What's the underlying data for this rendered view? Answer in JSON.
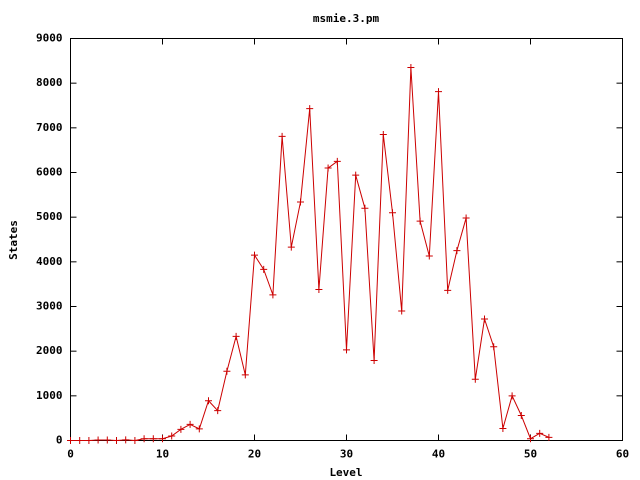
{
  "chart_data": {
    "type": "line",
    "title": "msmie.3.pm",
    "x_label": "Level",
    "y_label": "States",
    "x": [
      0,
      1,
      2,
      3,
      4,
      5,
      6,
      7,
      8,
      9,
      10,
      11,
      12,
      13,
      14,
      15,
      16,
      17,
      18,
      19,
      20,
      21,
      22,
      23,
      24,
      25,
      26,
      27,
      28,
      29,
      30,
      31,
      32,
      33,
      34,
      35,
      36,
      37,
      38,
      39,
      40,
      41,
      42,
      43,
      44,
      45,
      46,
      47,
      48,
      49,
      50,
      51,
      52
    ],
    "values": [
      0,
      0,
      0,
      10,
      10,
      0,
      15,
      0,
      40,
      40,
      40,
      100,
      250,
      360,
      260,
      890,
      670,
      1550,
      2330,
      1470,
      4150,
      3830,
      3260,
      6810,
      4330,
      5340,
      7430,
      3380,
      6100,
      6250,
      2030,
      5940,
      5200,
      1790,
      6850,
      5100,
      2900,
      8350,
      4910,
      4130,
      7810,
      3360,
      4250,
      4980,
      1370,
      2720,
      2100,
      270,
      1000,
      560,
      40,
      160,
      70
    ],
    "color": "#cc0000",
    "xlim": [
      0,
      60
    ],
    "xticks": [
      0,
      10,
      20,
      30,
      40,
      50,
      60
    ],
    "ylim": [
      0,
      9000
    ],
    "yticks": [
      0,
      1000,
      2000,
      3000,
      4000,
      5000,
      6000,
      7000,
      8000,
      9000
    ]
  }
}
